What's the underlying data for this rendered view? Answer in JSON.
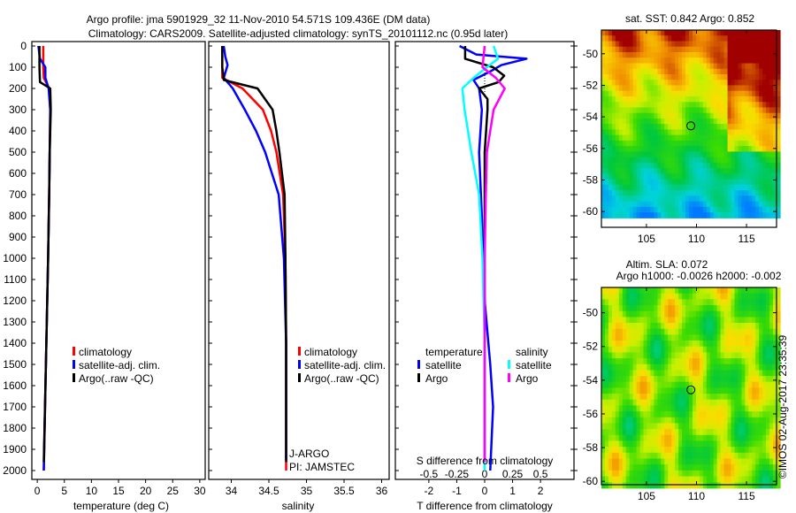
{
  "title_line1": "Argo profile: jma 5901929_32 11-Nov-2010 54.571S 109.436E (DM data)",
  "title_line2": "Climatology: CARS2009. Satellite-adjusted climatology: synTS_20101112.nc (0.95d later)",
  "credit": "©IMOS 02-Aug-2017 23:35:39",
  "colors": {
    "climatology": "#ff0000",
    "satellite": "#0000ff",
    "argo": "#000000",
    "sal_satellite": "#00ffff",
    "sal_argo": "#ff00ff"
  },
  "chart_data": [
    {
      "type": "line",
      "name": "temperature",
      "xlabel": "temperature (deg C)",
      "ylabel": "depth",
      "xlim": [
        -1,
        31
      ],
      "ylim": [
        2060,
        -25
      ],
      "xticks": [
        "0",
        "5",
        "10",
        "15",
        "20",
        "25",
        "30"
      ],
      "xtick_values": [
        0,
        5,
        10,
        15,
        20,
        25,
        30
      ],
      "yticks": [
        "0",
        "100",
        "200",
        "300",
        "400",
        "500",
        "600",
        "700",
        "800",
        "900",
        "1000",
        "1100",
        "1200",
        "1300",
        "1400",
        "1500",
        "1600",
        "1700",
        "1800",
        "1900",
        "2000"
      ],
      "ytick_values": [
        0,
        100,
        200,
        300,
        400,
        500,
        600,
        700,
        800,
        900,
        1000,
        1100,
        1200,
        1300,
        1400,
        1500,
        1600,
        1700,
        1800,
        1900,
        2000
      ],
      "legend": [
        "climatology",
        "satellite-adj. clim.",
        "Argo(..raw -QC)"
      ],
      "series": [
        {
          "name": "climatology",
          "color": "#ff0000",
          "depth": [
            0,
            100,
            150,
            200,
            300,
            500,
            700,
            1000,
            1500,
            2000
          ],
          "values": [
            1.1,
            1.1,
            1.2,
            2.2,
            2.4,
            2.3,
            2.2,
            2.0,
            1.6,
            1.2
          ]
        },
        {
          "name": "satellite-adj. clim.",
          "color": "#0000ff",
          "depth": [
            0,
            60,
            100,
            150,
            200,
            300,
            500,
            700,
            1000,
            1500,
            2000
          ],
          "values": [
            0.2,
            0.5,
            1.5,
            1.5,
            2.1,
            2.4,
            2.3,
            2.2,
            2.0,
            1.6,
            1.2
          ]
        },
        {
          "name": "Argo(..raw -QC)",
          "color": "#000000",
          "depth": [
            0,
            100,
            170,
            200,
            300,
            500,
            700,
            1000,
            1500,
            1960
          ],
          "values": [
            0.4,
            0.4,
            0.5,
            2.4,
            2.5,
            2.3,
            2.2,
            2.0,
            1.6,
            1.2
          ]
        }
      ]
    },
    {
      "type": "line",
      "name": "salinity",
      "xlabel": "salinity",
      "xlim": [
        33.7,
        36.1
      ],
      "ylim": [
        2060,
        -25
      ],
      "xticks": [
        "34",
        "34.5",
        "35",
        "35.5",
        "36"
      ],
      "xtick_values": [
        34,
        34.5,
        35,
        35.5,
        36
      ],
      "legend": [
        "climatology",
        "satellite-adj. clim.",
        "Argo(..raw -QC)"
      ],
      "annotation": [
        "J-ARGO",
        "PI: JAMSTEC"
      ],
      "series": [
        {
          "name": "climatology",
          "color": "#ff0000",
          "depth": [
            0,
            150,
            200,
            300,
            400,
            500,
            700,
            1000,
            1400,
            2000
          ],
          "values": [
            33.88,
            33.88,
            34.15,
            34.42,
            34.53,
            34.6,
            34.69,
            34.72,
            34.73,
            34.73
          ]
        },
        {
          "name": "satellite-adj. clim.",
          "color": "#0000ff",
          "depth": [
            0,
            50,
            90,
            150,
            200,
            300,
            400,
            500,
            700,
            1000,
            1400,
            1950
          ],
          "values": [
            33.9,
            33.92,
            33.95,
            33.9,
            34.02,
            34.18,
            34.33,
            34.45,
            34.63,
            34.7,
            34.73,
            34.73
          ]
        },
        {
          "name": "Argo(..raw -QC)",
          "color": "#000000",
          "depth": [
            0,
            100,
            160,
            200,
            300,
            400,
            500,
            700,
            1000,
            1400,
            1960
          ],
          "values": [
            33.88,
            33.88,
            33.9,
            34.35,
            34.55,
            34.6,
            34.64,
            34.71,
            34.72,
            34.73,
            34.73
          ]
        }
      ]
    },
    {
      "type": "line",
      "name": "differences",
      "xlabel": "T difference from climatology",
      "x2label": "S difference from climatology",
      "xlim": [
        -3.2,
        3.2
      ],
      "x2lim": [
        -0.8,
        0.8
      ],
      "ylim": [
        2060,
        -25
      ],
      "xticks": [
        "-2",
        "-1",
        "0",
        "1",
        "2"
      ],
      "xtick_values": [
        -2,
        -1,
        0,
        1,
        2
      ],
      "x2ticks": [
        "-0.5",
        "-0.25",
        "0",
        "0.25",
        "0.5"
      ],
      "x2tick_values": [
        -0.5,
        -0.25,
        0,
        0.25,
        0.5
      ],
      "legend_temperature": {
        "title": "temperature",
        "items": [
          "satellite",
          "Argo"
        ]
      },
      "legend_salinity": {
        "title": "salinity",
        "items": [
          "satellite",
          "Argo"
        ]
      },
      "series": [
        {
          "name": "T satellite",
          "axis": "T",
          "color": "#0000ff",
          "depth": [
            0,
            40,
            60,
            90,
            120,
            160,
            200,
            300,
            500,
            800,
            1200,
            1500,
            1700,
            2000
          ],
          "values": [
            -0.9,
            -0.3,
            1.5,
            0.6,
            0.2,
            -0.4,
            -0.2,
            -0.1,
            -0.2,
            -0.1,
            0.0,
            0.2,
            0.3,
            0.2
          ]
        },
        {
          "name": "T Argo",
          "axis": "T",
          "color": "#000000",
          "depth": [
            0,
            60,
            100,
            140,
            170,
            200,
            250,
            300,
            500,
            800,
            1200,
            1500,
            1960
          ],
          "values": [
            -0.7,
            -0.7,
            0.3,
            0.7,
            0.5,
            -0.2,
            0.1,
            0.1,
            0.0,
            0.0,
            0.0,
            0.0,
            0.0
          ]
        },
        {
          "name": "S satellite",
          "axis": "S",
          "color": "#00ffff",
          "depth": [
            0,
            60,
            100,
            150,
            200,
            300,
            500,
            700,
            1000,
            1400,
            2000
          ],
          "values": [
            0.08,
            0.12,
            0.02,
            -0.1,
            -0.2,
            -0.18,
            -0.12,
            -0.05,
            -0.02,
            0.0,
            0.0
          ]
        },
        {
          "name": "S Argo",
          "axis": "S",
          "color": "#ff00ff",
          "depth": [
            0,
            100,
            150,
            200,
            300,
            500,
            700,
            1000,
            1500,
            1960
          ],
          "values": [
            0.0,
            -0.02,
            0.1,
            0.18,
            0.08,
            0.02,
            0.01,
            0.0,
            0.0,
            0.0
          ]
        }
      ]
    },
    {
      "type": "heatmap",
      "name": "sst_map",
      "title": "sat. SST: 0.842 Argo: 0.852",
      "xlim": [
        100.5,
        118
      ],
      "ylim": [
        -60.6,
        -48.5
      ],
      "xticks": [
        "105",
        "110",
        "115"
      ],
      "xtick_values": [
        105,
        110,
        115
      ],
      "yticks": [
        "-50",
        "-52",
        "-54",
        "-56",
        "-58",
        "-60"
      ],
      "ytick_values": [
        -50,
        -52,
        -54,
        -56,
        -58,
        -60
      ],
      "marker": {
        "lon": 109.436,
        "lat": -54.571
      }
    },
    {
      "type": "heatmap",
      "name": "sla_map",
      "title": "Altim. SLA: 0.072",
      "subtitle": "Argo h1000: -0.0026 h2000: -0.002",
      "xlim": [
        100.5,
        118
      ],
      "ylim": [
        -60.2,
        -48.5
      ],
      "xticks": [
        "105",
        "110",
        "115"
      ],
      "xtick_values": [
        105,
        110,
        115
      ],
      "yticks": [
        "-50",
        "-52",
        "-54",
        "-56",
        "-58",
        "-60"
      ],
      "ytick_values": [
        -50,
        -52,
        -54,
        -56,
        -58,
        -60
      ],
      "marker": {
        "lon": 109.436,
        "lat": -54.571
      }
    }
  ]
}
